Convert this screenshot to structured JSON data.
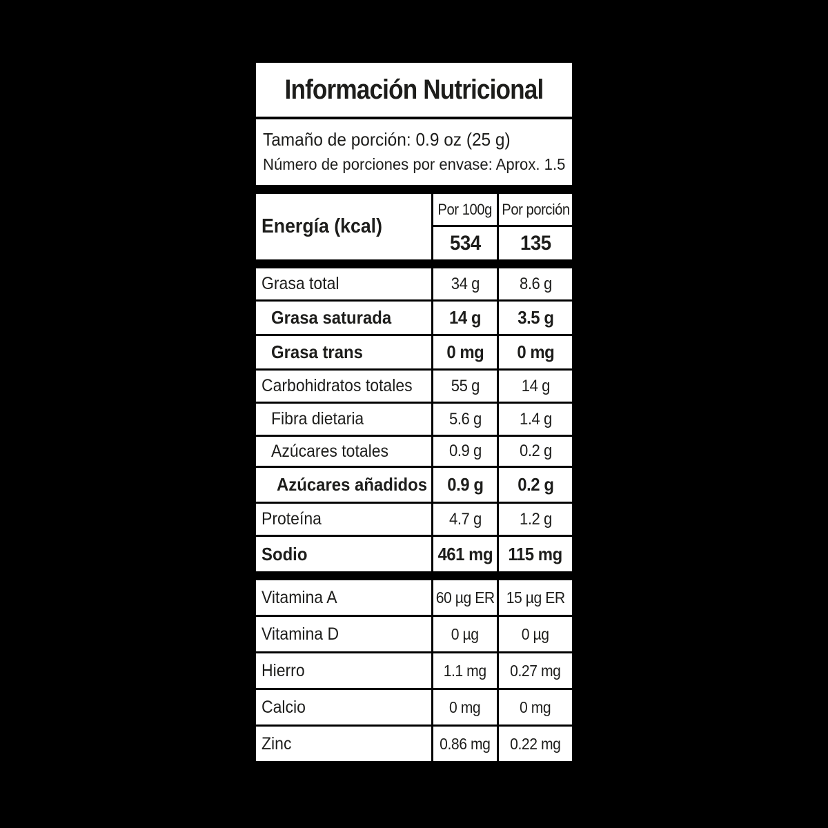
{
  "title": "Información Nutricional",
  "serving": {
    "size_line": "Tamaño de porción: 0.9 oz (25 g)",
    "servings_line": "Número de porciones por envase: Aprox. 1.5"
  },
  "energy": {
    "label": "Energía (kcal)",
    "col_header_100g": "Por 100g",
    "col_header_portion": "Por porción",
    "per100": "534",
    "perPortion": "135"
  },
  "nutrients": [
    {
      "label": "Grasa total",
      "per100": "34 g",
      "perPortion": "8.6 g"
    },
    {
      "label": "Grasa saturada",
      "per100": "14 g",
      "perPortion": "3.5 g"
    },
    {
      "label": "Grasa trans",
      "per100": "0 mg",
      "perPortion": "0 mg"
    },
    {
      "label": "Carbohidratos totales",
      "per100": "55 g",
      "perPortion": "14 g"
    },
    {
      "label": "Fibra dietaria",
      "per100": "5.6 g",
      "perPortion": "1.4 g"
    },
    {
      "label": "Azúcares totales",
      "per100": "0.9 g",
      "perPortion": "0.2 g"
    },
    {
      "label": "Azúcares añadidos",
      "per100": "0.9 g",
      "perPortion": "0.2 g"
    },
    {
      "label": "Proteína",
      "per100": "4.7 g",
      "perPortion": "1.2 g"
    },
    {
      "label": "Sodio",
      "per100": "461 mg",
      "perPortion": "115 mg"
    }
  ],
  "micronutrients": [
    {
      "label": "Vitamina A",
      "per100": "60 µg ER",
      "perPortion": "15 µg ER"
    },
    {
      "label": "Vitamina D",
      "per100": "0 µg",
      "perPortion": "0 µg"
    },
    {
      "label": "Hierro",
      "per100": "1.1 mg",
      "perPortion": "0.27 mg"
    },
    {
      "label": "Calcio",
      "per100": "0 mg",
      "perPortion": "0 mg"
    },
    {
      "label": "Zinc",
      "per100": "0.86 mg",
      "perPortion": "0.22 mg"
    }
  ],
  "colors": {
    "background": "#000000",
    "label_background": "#ffffff",
    "text": "#1d1d1b"
  }
}
